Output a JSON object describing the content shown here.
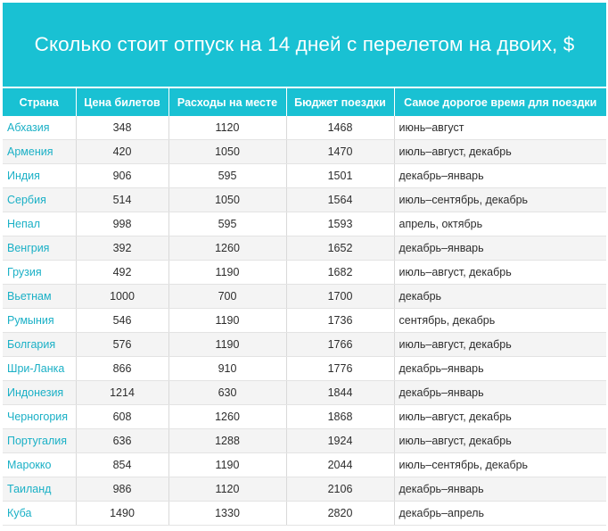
{
  "title": "Сколько стоит отпуск на 14 дней с перелетом на двоих, $",
  "columns": [
    "Страна",
    "Цена билетов",
    "Расходы на месте",
    "Бюджет поездки",
    "Самое дорогое время для поездки"
  ],
  "rows": [
    {
      "country": "Абхазия",
      "tickets": "348",
      "local": "1120",
      "budget": "1468",
      "season": "июнь–август"
    },
    {
      "country": "Армения",
      "tickets": "420",
      "local": "1050",
      "budget": "1470",
      "season": "июль–август, декабрь"
    },
    {
      "country": "Индия",
      "tickets": "906",
      "local": "595",
      "budget": "1501",
      "season": "декабрь–январь"
    },
    {
      "country": "Сербия",
      "tickets": "514",
      "local": "1050",
      "budget": "1564",
      "season": "июль–сентябрь, декабрь"
    },
    {
      "country": "Непал",
      "tickets": "998",
      "local": "595",
      "budget": "1593",
      "season": "апрель, октябрь"
    },
    {
      "country": "Венгрия",
      "tickets": "392",
      "local": "1260",
      "budget": "1652",
      "season": "декабрь–январь"
    },
    {
      "country": "Грузия",
      "tickets": "492",
      "local": "1190",
      "budget": "1682",
      "season": "июль–август, декабрь"
    },
    {
      "country": "Вьетнам",
      "tickets": "1000",
      "local": "700",
      "budget": "1700",
      "season": "декабрь"
    },
    {
      "country": "Румыния",
      "tickets": "546",
      "local": "1190",
      "budget": "1736",
      "season": "сентябрь, декабрь"
    },
    {
      "country": "Болгария",
      "tickets": "576",
      "local": "1190",
      "budget": "1766",
      "season": "июль–август, декабрь"
    },
    {
      "country": "Шри-Ланка",
      "tickets": "866",
      "local": "910",
      "budget": "1776",
      "season": "декабрь–январь"
    },
    {
      "country": "Индонезия",
      "tickets": "1214",
      "local": "630",
      "budget": "1844",
      "season": "декабрь–январь"
    },
    {
      "country": "Черногория",
      "tickets": "608",
      "local": "1260",
      "budget": "1868",
      "season": "июль–август, декабрь"
    },
    {
      "country": "Португалия",
      "tickets": "636",
      "local": "1288",
      "budget": "1924",
      "season": "июль–август, декабрь"
    },
    {
      "country": "Марокко",
      "tickets": "854",
      "local": "1190",
      "budget": "2044",
      "season": "июль–сентябрь, декабрь"
    },
    {
      "country": "Таиланд",
      "tickets": "986",
      "local": "1120",
      "budget": "2106",
      "season": "декабрь–январь"
    },
    {
      "country": "Куба",
      "tickets": "1490",
      "local": "1330",
      "budget": "2820",
      "season": "декабрь–апрель"
    }
  ],
  "colors": {
    "accent": "#19c1d3",
    "country_text": "#1ab0c6",
    "row_alt": "#f4f4f4"
  }
}
